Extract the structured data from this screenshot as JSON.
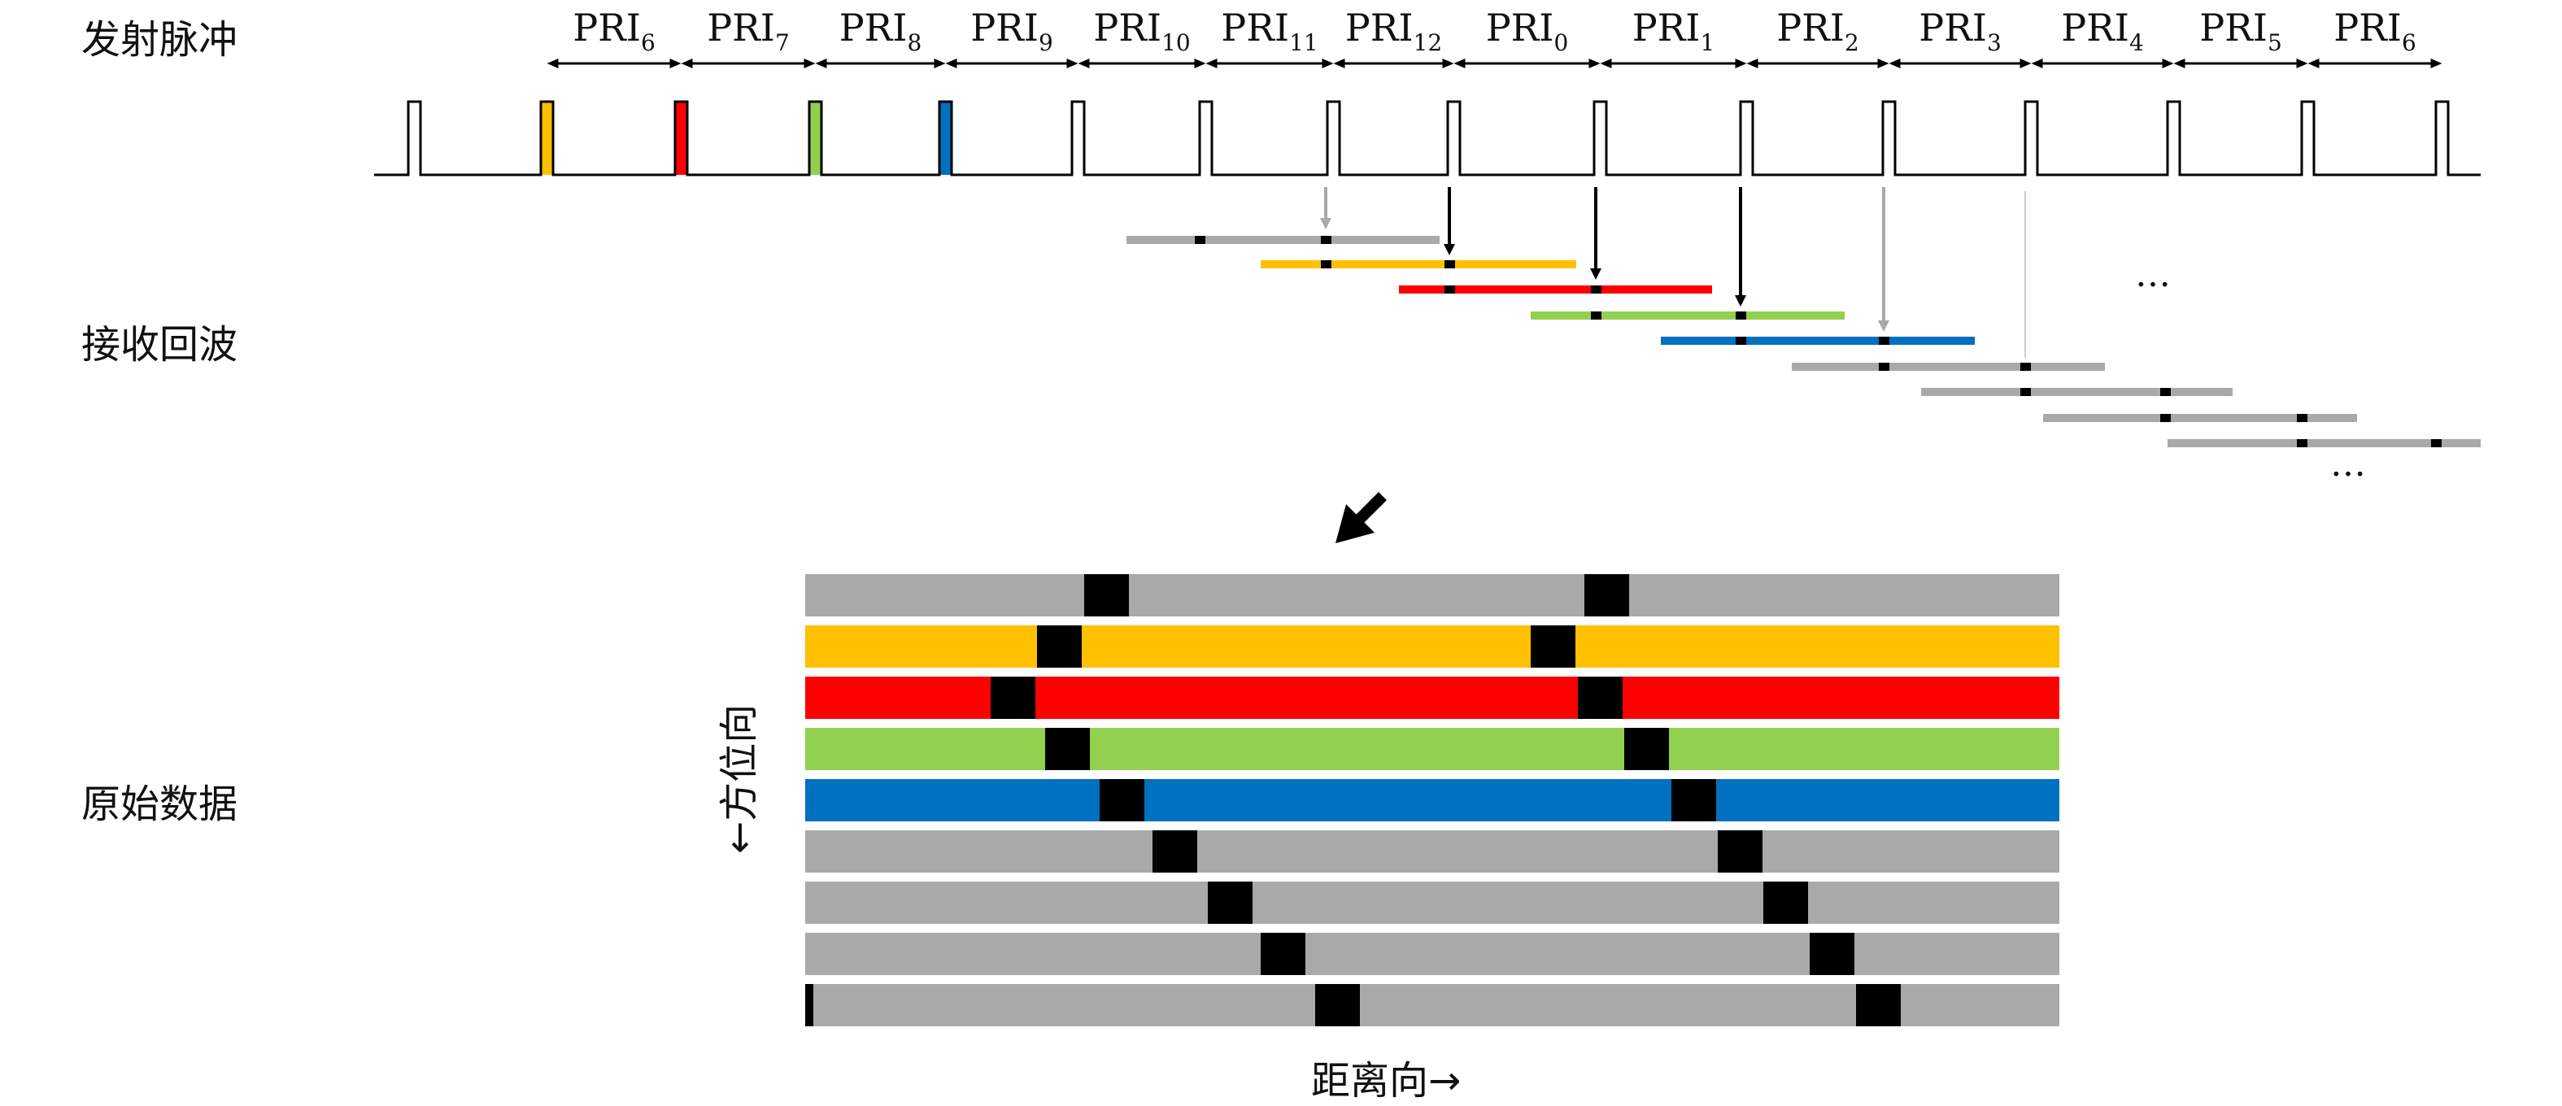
{
  "section_labels": {
    "transmit": "发射脉冲",
    "receive": "接收回波",
    "raw": "原始数据"
  },
  "pri_labels": [
    {
      "base": "PRI",
      "sub": "6"
    },
    {
      "base": "PRI",
      "sub": "7"
    },
    {
      "base": "PRI",
      "sub": "8"
    },
    {
      "base": "PRI",
      "sub": "9"
    },
    {
      "base": "PRI",
      "sub": "10"
    },
    {
      "base": "PRI",
      "sub": "11"
    },
    {
      "base": "PRI",
      "sub": "12"
    },
    {
      "base": "PRI",
      "sub": "0"
    },
    {
      "base": "PRI",
      "sub": "1"
    },
    {
      "base": "PRI",
      "sub": "2"
    },
    {
      "base": "PRI",
      "sub": "3"
    },
    {
      "base": "PRI",
      "sub": "4"
    },
    {
      "base": "PRI",
      "sub": "5"
    },
    {
      "base": "PRI",
      "sub": "6"
    }
  ],
  "colors": {
    "gray": "#a9a9a9",
    "yellow": "#ffc000",
    "red": "#ff0000",
    "green": "#92d050",
    "blue": "#0070c0",
    "black": "#000000"
  },
  "pulse_colors": [
    "gray",
    "yellow",
    "red",
    "green",
    "blue",
    "gray",
    "gray",
    "gray",
    "gray",
    "gray",
    "gray",
    "gray",
    "gray",
    "gray",
    "gray"
  ],
  "echo_colors": [
    "gray",
    "yellow",
    "red",
    "green",
    "blue",
    "gray",
    "gray",
    "gray",
    "gray"
  ],
  "raw_rows": [
    {
      "color": "gray"
    },
    {
      "color": "yellow"
    },
    {
      "color": "red"
    },
    {
      "color": "green"
    },
    {
      "color": "blue"
    },
    {
      "color": "gray"
    },
    {
      "color": "gray"
    },
    {
      "color": "gray"
    },
    {
      "color": "gray"
    }
  ],
  "ellipsis": "…",
  "axis_labels": {
    "range": "距离向→",
    "azimuth": "←方位向"
  }
}
